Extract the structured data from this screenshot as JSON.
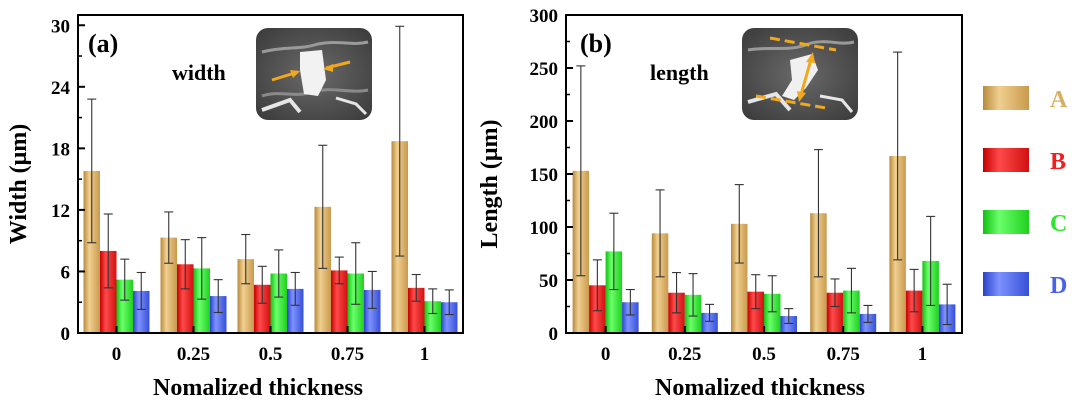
{
  "colors": {
    "A": "#d8ae63",
    "B": "#ef1f1f",
    "C": "#2ee52e",
    "D": "#4a63e6"
  },
  "legend": [
    {
      "key": "A",
      "label": "A"
    },
    {
      "key": "B",
      "label": "B"
    },
    {
      "key": "C",
      "label": "C"
    },
    {
      "key": "D",
      "label": "D"
    }
  ],
  "chart_data": [
    {
      "type": "bar",
      "panel_label": "(a)",
      "inset_label": "width",
      "title": "",
      "xlabel": "Nomalized thickness",
      "ylabel": "Width (μm)",
      "ylim": [
        0,
        31
      ],
      "yticks": [
        "0",
        "6",
        "12",
        "18",
        "24",
        "30"
      ],
      "categories": [
        "0",
        "0.25",
        "0.5",
        "0.75",
        "1"
      ],
      "series": [
        {
          "name": "A",
          "values": [
            15.8,
            9.3,
            7.2,
            12.3,
            18.7
          ],
          "errors": [
            7.0,
            2.5,
            2.4,
            6.0,
            11.2
          ]
        },
        {
          "name": "B",
          "values": [
            8.0,
            6.7,
            4.7,
            6.1,
            4.4
          ],
          "errors": [
            3.6,
            2.4,
            1.8,
            1.3,
            1.3
          ]
        },
        {
          "name": "C",
          "values": [
            5.2,
            6.3,
            5.8,
            5.8,
            3.1
          ],
          "errors": [
            2.0,
            3.0,
            2.3,
            3.0,
            1.2
          ]
        },
        {
          "name": "D",
          "values": [
            4.1,
            3.6,
            4.3,
            4.2,
            3.0
          ],
          "errors": [
            1.8,
            1.6,
            1.6,
            1.8,
            1.2
          ]
        }
      ]
    },
    {
      "type": "bar",
      "panel_label": "(b)",
      "inset_label": "length",
      "title": "",
      "xlabel": "Nomalized thickness",
      "ylabel": "Length (μm)",
      "ylim": [
        0,
        300
      ],
      "yticks": [
        "0",
        "50",
        "100",
        "150",
        "200",
        "250",
        "300"
      ],
      "categories": [
        "0",
        "0.25",
        "0.5",
        "0.75",
        "1"
      ],
      "series": [
        {
          "name": "A",
          "values": [
            153,
            94,
            103,
            113,
            167
          ],
          "errors": [
            99,
            41,
            37,
            60,
            98
          ]
        },
        {
          "name": "B",
          "values": [
            45,
            38,
            39,
            38,
            40
          ],
          "errors": [
            24,
            19,
            16,
            13,
            20
          ]
        },
        {
          "name": "C",
          "values": [
            77,
            36,
            37,
            40,
            68
          ],
          "errors": [
            36,
            20,
            17,
            21,
            42
          ]
        },
        {
          "name": "D",
          "values": [
            29,
            19,
            16,
            18,
            27
          ],
          "errors": [
            12,
            8,
            7,
            8,
            19
          ]
        }
      ]
    }
  ]
}
